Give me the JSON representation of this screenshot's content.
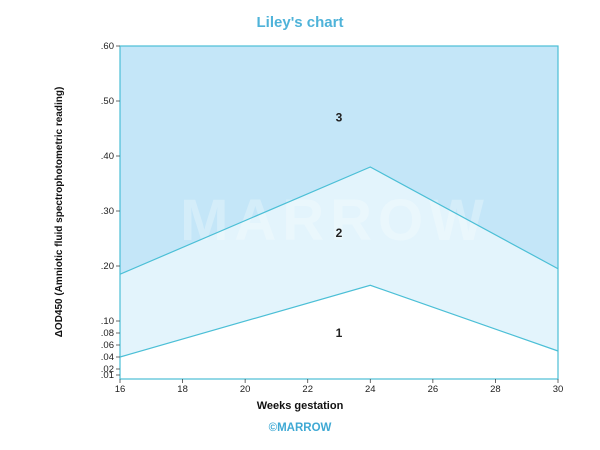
{
  "chart_data": {
    "type": "area",
    "title": "Liley's chart",
    "xlabel": "Weeks gestation",
    "ylabel": "ΔOD450 (Amniotic fluid spectrophotometric reading)",
    "xlim": [
      16,
      30
    ],
    "ylim": [
      0.01,
      0.6
    ],
    "x_ticks": [
      {
        "value": 16,
        "label": "16"
      },
      {
        "value": 18,
        "label": "18"
      },
      {
        "value": 20,
        "label": "20"
      },
      {
        "value": 22,
        "label": "22"
      },
      {
        "value": 24,
        "label": "24"
      },
      {
        "value": 26,
        "label": "26"
      },
      {
        "value": 28,
        "label": "28"
      },
      {
        "value": 30,
        "label": "30"
      }
    ],
    "y_ticks": [
      {
        "value": 0.01,
        "label": ".01"
      },
      {
        "value": 0.02,
        "label": ".02"
      },
      {
        "value": 0.04,
        "label": ".04"
      },
      {
        "value": 0.06,
        "label": ".06"
      },
      {
        "value": 0.08,
        "label": ".08"
      },
      {
        "value": 0.1,
        "label": ".10"
      },
      {
        "value": 0.2,
        "label": ".20"
      },
      {
        "value": 0.3,
        "label": ".30"
      },
      {
        "value": 0.4,
        "label": ".40"
      },
      {
        "value": 0.5,
        "label": ".50"
      },
      {
        "value": 0.6,
        "label": ".60"
      }
    ],
    "series": [
      {
        "name": "upper boundary",
        "x": [
          16,
          24,
          30
        ],
        "y": [
          0.185,
          0.38,
          0.195
        ]
      },
      {
        "name": "lower boundary",
        "x": [
          16,
          24,
          30
        ],
        "y": [
          0.04,
          0.165,
          0.05
        ]
      }
    ],
    "zones": [
      {
        "label": "3",
        "x": 23,
        "y": 0.47
      },
      {
        "label": "2",
        "x": 23,
        "y": 0.26
      },
      {
        "label": "1",
        "x": 23,
        "y": 0.08
      }
    ],
    "colors": {
      "zone3": "#c4e6f8",
      "zone2": "#e3f4fc",
      "zone1": "#ffffff",
      "line": "#4bbfd6",
      "title": "#4fb3d9"
    }
  },
  "watermark": "MARROW",
  "copyright": "©MARROW"
}
